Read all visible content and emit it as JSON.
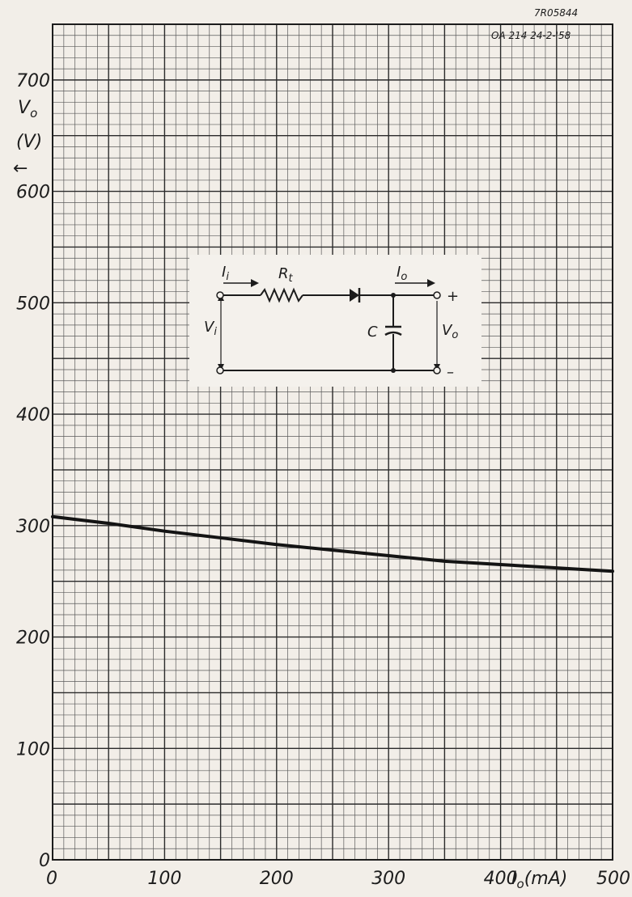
{
  "stamp": {
    "line1": "7R05844",
    "line2": "OA 214  24-2-'58"
  },
  "chart_data": {
    "type": "line",
    "xlabel": "I_o (mA)",
    "ylabel": "V_o (V)",
    "xlim": [
      0,
      500
    ],
    "ylim": [
      0,
      750
    ],
    "x_ticks": [
      "0",
      "100",
      "200",
      "300",
      "400",
      "500"
    ],
    "y_ticks": [
      "0",
      "100",
      "200",
      "300",
      "400",
      "500",
      "600",
      "700"
    ],
    "grid": true,
    "series": [
      {
        "x": [
          0,
          50,
          100,
          150,
          200,
          250,
          300,
          350,
          400,
          450,
          500
        ],
        "y": [
          308,
          302,
          295,
          289,
          283,
          278,
          273,
          268,
          265,
          262,
          259
        ]
      }
    ]
  },
  "labels": {
    "y_main": "V",
    "y_sub": "o",
    "y_unit": "(V)",
    "y_arrow": "←",
    "x_main": "I",
    "x_sub": "o",
    "x_unit": "(mA)"
  },
  "circuit": {
    "ii": "I",
    "ii_sub": "i",
    "rt": "R",
    "rt_sub": "t",
    "io": "I",
    "io_sub": "o",
    "vi": "V",
    "vi_sub": "i",
    "c": "C",
    "vo": "V",
    "vo_sub": "o",
    "plus": "+",
    "minus": "–"
  }
}
